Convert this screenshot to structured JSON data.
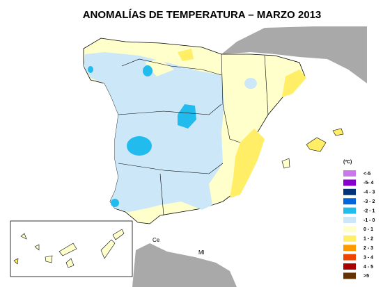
{
  "title": "ANOMALÍAS DE TEMPERATURA – MARZO 2013",
  "legend": {
    "unit": "(ºC)",
    "items": [
      {
        "label": "<-5",
        "color": "#cc77ee"
      },
      {
        "label": "-5- 4",
        "color": "#8800cc"
      },
      {
        "label": "-4 - 3",
        "color": "#003377"
      },
      {
        "label": "-3 - 2",
        "color": "#0066dd"
      },
      {
        "label": "-2 - 1",
        "color": "#22bbee"
      },
      {
        "label": "-1 - 0",
        "color": "#cce8f8"
      },
      {
        "label": "0 - 1",
        "color": "#ffffcc"
      },
      {
        "label": "1 - 2",
        "color": "#ffee66"
      },
      {
        "label": "2 - 3",
        "color": "#ff9900"
      },
      {
        "label": "3 - 4",
        "color": "#ee4400"
      },
      {
        "label": "4 - 5",
        "color": "#aa0000"
      },
      {
        "label": ">5",
        "color": "#663300"
      }
    ]
  },
  "places": {
    "ceuta": "Ce",
    "melilla": "Ml"
  }
}
